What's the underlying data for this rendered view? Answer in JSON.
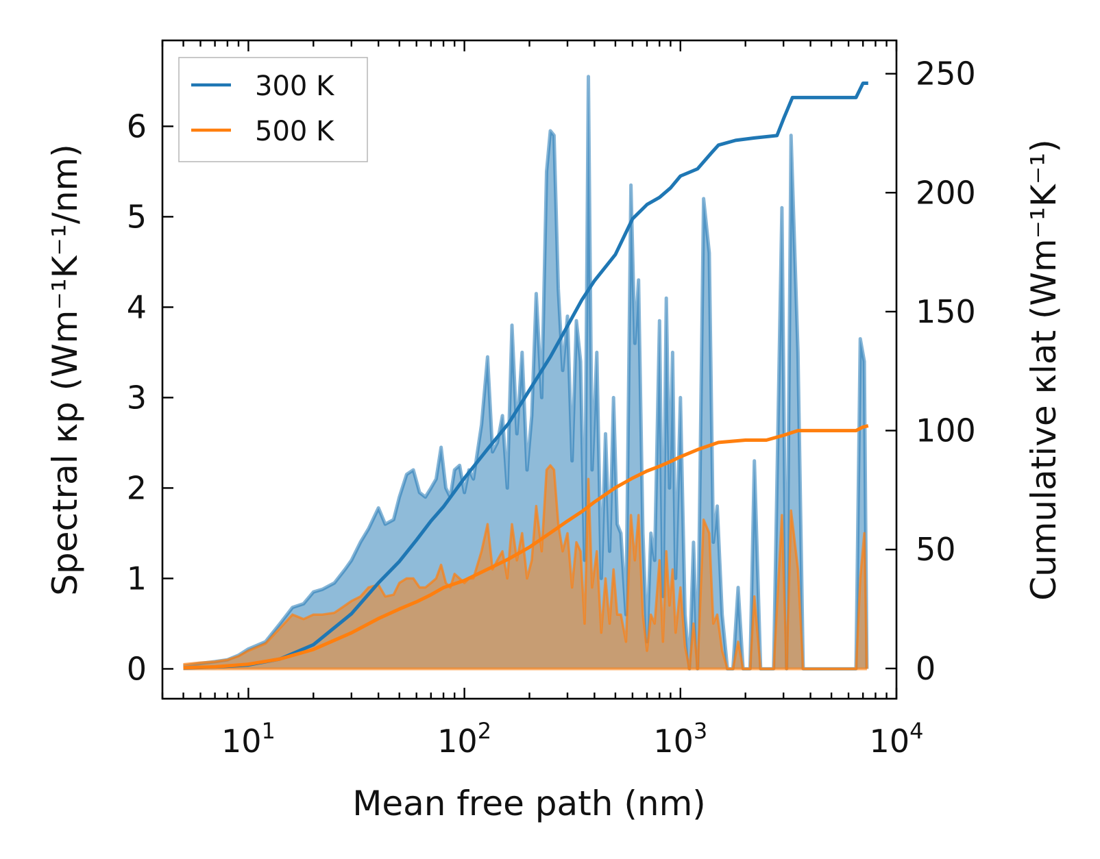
{
  "chart_data": {
    "type": "area",
    "title": "",
    "xlabel": "Mean free path (nm)",
    "ylabel_left": "Spectral κp (Wm⁻¹K⁻¹/nm)",
    "ylabel_right": "Cumulative κlat (Wm⁻¹K⁻¹)",
    "x_scale": "log",
    "xlim": [
      4,
      10000
    ],
    "ylim_left": [
      -0.33,
      6.95
    ],
    "ylim_right": [
      -12.7,
      264
    ],
    "x_ticks": [
      {
        "value": 10,
        "base": "10",
        "exp": "1"
      },
      {
        "value": 100,
        "base": "10",
        "exp": "2"
      },
      {
        "value": 1000,
        "base": "10",
        "exp": "3"
      },
      {
        "value": 10000,
        "base": "10",
        "exp": "4"
      }
    ],
    "y_ticks_left": [
      "0",
      "1",
      "2",
      "3",
      "4",
      "5",
      "6"
    ],
    "y_ticks_right": [
      "0",
      "50",
      "100",
      "150",
      "200",
      "250"
    ],
    "legend": {
      "placement": "top-left",
      "entries": [
        {
          "label": "300 K",
          "color": "#1f77b4"
        },
        {
          "label": "500 K",
          "color": "#ff7f0e"
        }
      ]
    },
    "colors": {
      "blue": "#1f77b4",
      "orange": "#ff7f0e",
      "blue_fill": "#1f77b4",
      "orange_fill": "#ff7f0e"
    },
    "spectral_300K": [
      [
        5,
        0.03
      ],
      [
        6,
        0.06
      ],
      [
        7,
        0.08
      ],
      [
        8,
        0.1
      ],
      [
        9,
        0.15
      ],
      [
        10,
        0.22
      ],
      [
        12,
        0.3
      ],
      [
        14,
        0.5
      ],
      [
        16,
        0.68
      ],
      [
        18,
        0.72
      ],
      [
        20,
        0.85
      ],
      [
        22,
        0.88
      ],
      [
        25,
        0.95
      ],
      [
        28,
        1.1
      ],
      [
        30,
        1.2
      ],
      [
        33,
        1.4
      ],
      [
        36,
        1.55
      ],
      [
        40,
        1.78
      ],
      [
        43,
        1.6
      ],
      [
        47,
        1.65
      ],
      [
        50,
        1.9
      ],
      [
        54,
        2.15
      ],
      [
        58,
        2.2
      ],
      [
        62,
        1.95
      ],
      [
        66,
        1.9
      ],
      [
        70,
        2.0
      ],
      [
        74,
        2.1
      ],
      [
        78,
        2.45
      ],
      [
        82,
        2.0
      ],
      [
        86,
        1.9
      ],
      [
        90,
        2.2
      ],
      [
        95,
        2.25
      ],
      [
        100,
        1.95
      ],
      [
        105,
        2.2
      ],
      [
        110,
        2.1
      ],
      [
        120,
        2.7
      ],
      [
        128,
        3.45
      ],
      [
        135,
        2.4
      ],
      [
        142,
        2.5
      ],
      [
        150,
        2.8
      ],
      [
        158,
        2.0
      ],
      [
        166,
        3.8
      ],
      [
        175,
        2.6
      ],
      [
        185,
        3.5
      ],
      [
        195,
        2.2
      ],
      [
        205,
        2.8
      ],
      [
        215,
        4.15
      ],
      [
        228,
        3.0
      ],
      [
        240,
        5.5
      ],
      [
        250,
        5.95
      ],
      [
        260,
        5.9
      ],
      [
        272,
        4.2
      ],
      [
        285,
        3.3
      ],
      [
        300,
        3.9
      ],
      [
        315,
        2.3
      ],
      [
        330,
        3.85
      ],
      [
        345,
        3.4
      ],
      [
        360,
        1.2
      ],
      [
        375,
        6.55
      ],
      [
        390,
        2.2
      ],
      [
        410,
        3.5
      ],
      [
        430,
        1.0
      ],
      [
        450,
        2.6
      ],
      [
        470,
        1.3
      ],
      [
        490,
        3.0
      ],
      [
        510,
        1.6
      ],
      [
        530,
        1.5
      ],
      [
        560,
        0.6
      ],
      [
        590,
        5.35
      ],
      [
        615,
        3.6
      ],
      [
        640,
        4.3
      ],
      [
        670,
        1.5
      ],
      [
        700,
        0.3
      ],
      [
        730,
        1.5
      ],
      [
        760,
        1.2
      ],
      [
        800,
        3.85
      ],
      [
        830,
        0.8
      ],
      [
        860,
        4.1
      ],
      [
        890,
        2.0
      ],
      [
        920,
        3.5
      ],
      [
        950,
        1.0
      ],
      [
        1000,
        3.0
      ],
      [
        1050,
        0.6
      ],
      [
        1100,
        0.0
      ],
      [
        1150,
        1.4
      ],
      [
        1200,
        0.0
      ],
      [
        1280,
        5.2
      ],
      [
        1360,
        4.6
      ],
      [
        1420,
        1.4
      ],
      [
        1480,
        1.8
      ],
      [
        1560,
        0.6
      ],
      [
        1650,
        0.0
      ],
      [
        1750,
        0.0
      ],
      [
        1850,
        0.9
      ],
      [
        1950,
        0.0
      ],
      [
        2100,
        0.0
      ],
      [
        2200,
        2.3
      ],
      [
        2350,
        0.0
      ],
      [
        2700,
        0.0
      ],
      [
        2950,
        5.1
      ],
      [
        3100,
        0.0
      ],
      [
        3250,
        5.9
      ],
      [
        3500,
        3.5
      ],
      [
        3700,
        0.0
      ],
      [
        6500,
        0.0
      ],
      [
        6800,
        3.65
      ],
      [
        7100,
        3.4
      ],
      [
        7300,
        0.0
      ]
    ],
    "spectral_500K": [
      [
        5,
        0.05
      ],
      [
        6,
        0.07
      ],
      [
        7,
        0.08
      ],
      [
        8,
        0.1
      ],
      [
        9,
        0.14
      ],
      [
        10,
        0.2
      ],
      [
        12,
        0.28
      ],
      [
        14,
        0.45
      ],
      [
        16,
        0.6
      ],
      [
        18,
        0.55
      ],
      [
        20,
        0.6
      ],
      [
        22,
        0.6
      ],
      [
        25,
        0.62
      ],
      [
        28,
        0.7
      ],
      [
        30,
        0.75
      ],
      [
        33,
        0.8
      ],
      [
        36,
        0.9
      ],
      [
        40,
        0.93
      ],
      [
        43,
        0.8
      ],
      [
        47,
        0.82
      ],
      [
        50,
        0.95
      ],
      [
        54,
        1.0
      ],
      [
        58,
        1.0
      ],
      [
        62,
        0.9
      ],
      [
        66,
        0.9
      ],
      [
        70,
        0.95
      ],
      [
        74,
        1.0
      ],
      [
        78,
        1.15
      ],
      [
        82,
        0.95
      ],
      [
        86,
        0.9
      ],
      [
        90,
        1.05
      ],
      [
        95,
        1.0
      ],
      [
        100,
        0.95
      ],
      [
        105,
        1.0
      ],
      [
        110,
        1.0
      ],
      [
        120,
        1.3
      ],
      [
        128,
        1.6
      ],
      [
        135,
        1.1
      ],
      [
        142,
        1.2
      ],
      [
        150,
        1.3
      ],
      [
        158,
        1.0
      ],
      [
        166,
        1.6
      ],
      [
        175,
        1.2
      ],
      [
        185,
        1.5
      ],
      [
        195,
        1.0
      ],
      [
        205,
        1.2
      ],
      [
        215,
        1.8
      ],
      [
        228,
        1.3
      ],
      [
        240,
        2.2
      ],
      [
        250,
        2.25
      ],
      [
        260,
        2.2
      ],
      [
        272,
        1.6
      ],
      [
        285,
        1.3
      ],
      [
        300,
        1.5
      ],
      [
        315,
        0.9
      ],
      [
        330,
        1.4
      ],
      [
        345,
        1.3
      ],
      [
        360,
        0.5
      ],
      [
        375,
        2.1
      ],
      [
        390,
        0.9
      ],
      [
        410,
        1.3
      ],
      [
        430,
        0.4
      ],
      [
        450,
        1.0
      ],
      [
        470,
        0.5
      ],
      [
        490,
        1.1
      ],
      [
        510,
        0.6
      ],
      [
        530,
        0.6
      ],
      [
        560,
        0.3
      ],
      [
        590,
        1.7
      ],
      [
        615,
        1.2
      ],
      [
        640,
        1.7
      ],
      [
        670,
        0.6
      ],
      [
        700,
        0.2
      ],
      [
        730,
        0.6
      ],
      [
        760,
        0.5
      ],
      [
        800,
        1.2
      ],
      [
        830,
        0.3
      ],
      [
        860,
        1.3
      ],
      [
        890,
        0.7
      ],
      [
        920,
        1.1
      ],
      [
        950,
        0.4
      ],
      [
        1000,
        0.9
      ],
      [
        1050,
        0.25
      ],
      [
        1100,
        0.0
      ],
      [
        1150,
        0.5
      ],
      [
        1200,
        0.0
      ],
      [
        1280,
        1.65
      ],
      [
        1360,
        1.5
      ],
      [
        1420,
        0.5
      ],
      [
        1480,
        0.6
      ],
      [
        1560,
        0.2
      ],
      [
        1650,
        0.0
      ],
      [
        1750,
        0.0
      ],
      [
        1850,
        0.3
      ],
      [
        1950,
        0.0
      ],
      [
        2100,
        0.0
      ],
      [
        2200,
        0.8
      ],
      [
        2350,
        0.0
      ],
      [
        2700,
        0.0
      ],
      [
        2950,
        1.7
      ],
      [
        3100,
        0.0
      ],
      [
        3250,
        1.75
      ],
      [
        3500,
        1.1
      ],
      [
        3700,
        0.0
      ],
      [
        6500,
        0.0
      ],
      [
        6800,
        1.0
      ],
      [
        7100,
        1.5
      ],
      [
        7300,
        0.0
      ]
    ],
    "cumulative_300K": [
      [
        5,
        0.2
      ],
      [
        7,
        0.6
      ],
      [
        10,
        1.5
      ],
      [
        14,
        4.0
      ],
      [
        20,
        10
      ],
      [
        30,
        23
      ],
      [
        40,
        36
      ],
      [
        50,
        45
      ],
      [
        60,
        54
      ],
      [
        70,
        62
      ],
      [
        80,
        68
      ],
      [
        100,
        80
      ],
      [
        130,
        93
      ],
      [
        160,
        103
      ],
      [
        200,
        117
      ],
      [
        250,
        131
      ],
      [
        300,
        144
      ],
      [
        350,
        155
      ],
      [
        400,
        163
      ],
      [
        500,
        174
      ],
      [
        600,
        189
      ],
      [
        700,
        195
      ],
      [
        800,
        198
      ],
      [
        900,
        202
      ],
      [
        1000,
        207
      ],
      [
        1200,
        210
      ],
      [
        1400,
        217
      ],
      [
        1500,
        220
      ],
      [
        1800,
        222
      ],
      [
        2200,
        223
      ],
      [
        2800,
        224
      ],
      [
        3000,
        231
      ],
      [
        3300,
        240
      ],
      [
        5000,
        240
      ],
      [
        6500,
        240
      ],
      [
        7000,
        246
      ],
      [
        7400,
        246
      ]
    ],
    "cumulative_500K": [
      [
        5,
        0.3
      ],
      [
        7,
        0.7
      ],
      [
        10,
        1.8
      ],
      [
        14,
        4.0
      ],
      [
        20,
        8
      ],
      [
        30,
        15
      ],
      [
        40,
        21
      ],
      [
        50,
        25
      ],
      [
        60,
        28
      ],
      [
        70,
        31
      ],
      [
        80,
        34
      ],
      [
        100,
        37
      ],
      [
        130,
        42
      ],
      [
        160,
        46
      ],
      [
        200,
        51
      ],
      [
        250,
        57
      ],
      [
        300,
        62
      ],
      [
        350,
        66
      ],
      [
        400,
        70
      ],
      [
        500,
        76
      ],
      [
        600,
        80
      ],
      [
        700,
        83
      ],
      [
        800,
        85
      ],
      [
        900,
        87
      ],
      [
        1000,
        89
      ],
      [
        1200,
        92
      ],
      [
        1500,
        95
      ],
      [
        2000,
        96
      ],
      [
        2500,
        96
      ],
      [
        3000,
        98
      ],
      [
        3500,
        100
      ],
      [
        5000,
        100
      ],
      [
        6500,
        100
      ],
      [
        7000,
        101.5
      ],
      [
        7400,
        102
      ]
    ]
  }
}
